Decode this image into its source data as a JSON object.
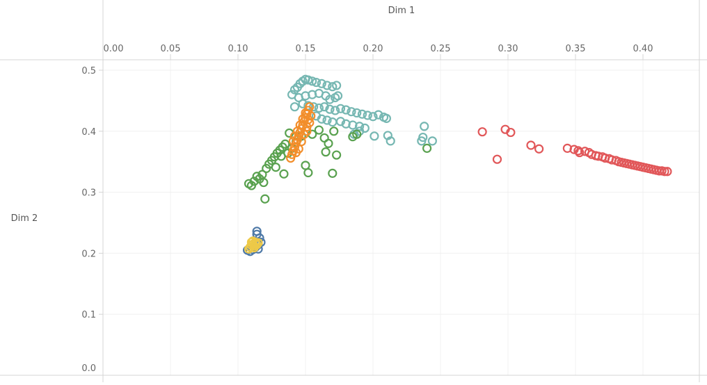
{
  "chart_data": {
    "type": "scatter",
    "marker": "hollow-circle",
    "xlabel": "Dim 1",
    "ylabel": "Dim 2",
    "xlim": [
      0.0,
      0.42
    ],
    "ylim": [
      0.0,
      0.5
    ],
    "x_ticks": [
      "0.00",
      "0.05",
      "0.10",
      "0.15",
      "0.20",
      "0.25",
      "0.30",
      "0.35",
      "0.40"
    ],
    "y_ticks": [
      "0.0",
      "0.1",
      "0.2",
      "0.3",
      "0.4",
      "0.5"
    ],
    "grid": true,
    "series": [
      {
        "color": "#e15759",
        "points": [
          [
            0.281,
            0.399
          ],
          [
            0.292,
            0.354
          ],
          [
            0.298,
            0.403
          ],
          [
            0.302,
            0.398
          ],
          [
            0.317,
            0.377
          ],
          [
            0.323,
            0.371
          ],
          [
            0.344,
            0.372
          ],
          [
            0.349,
            0.37
          ],
          [
            0.352,
            0.368
          ],
          [
            0.353,
            0.365
          ],
          [
            0.357,
            0.367
          ],
          [
            0.36,
            0.365
          ],
          [
            0.362,
            0.362
          ],
          [
            0.365,
            0.36
          ],
          [
            0.367,
            0.359
          ],
          [
            0.37,
            0.358
          ],
          [
            0.372,
            0.356
          ],
          [
            0.375,
            0.355
          ],
          [
            0.377,
            0.353
          ],
          [
            0.38,
            0.352
          ],
          [
            0.382,
            0.35
          ],
          [
            0.384,
            0.349
          ],
          [
            0.386,
            0.348
          ],
          [
            0.388,
            0.347
          ],
          [
            0.39,
            0.346
          ],
          [
            0.392,
            0.345
          ],
          [
            0.394,
            0.344
          ],
          [
            0.396,
            0.343
          ],
          [
            0.398,
            0.342
          ],
          [
            0.4,
            0.341
          ],
          [
            0.402,
            0.34
          ],
          [
            0.404,
            0.339
          ],
          [
            0.406,
            0.338
          ],
          [
            0.408,
            0.337
          ],
          [
            0.41,
            0.336
          ],
          [
            0.412,
            0.335
          ],
          [
            0.414,
            0.335
          ],
          [
            0.416,
            0.334
          ],
          [
            0.418,
            0.334
          ]
        ]
      },
      {
        "color": "#76b7b2",
        "points": [
          [
            0.14,
            0.46
          ],
          [
            0.142,
            0.468
          ],
          [
            0.144,
            0.472
          ],
          [
            0.146,
            0.478
          ],
          [
            0.148,
            0.482
          ],
          [
            0.15,
            0.485
          ],
          [
            0.152,
            0.484
          ],
          [
            0.155,
            0.482
          ],
          [
            0.158,
            0.48
          ],
          [
            0.162,
            0.478
          ],
          [
            0.166,
            0.475
          ],
          [
            0.17,
            0.473
          ],
          [
            0.173,
            0.475
          ],
          [
            0.145,
            0.455
          ],
          [
            0.15,
            0.458
          ],
          [
            0.155,
            0.46
          ],
          [
            0.16,
            0.462
          ],
          [
            0.165,
            0.458
          ],
          [
            0.168,
            0.452
          ],
          [
            0.172,
            0.455
          ],
          [
            0.174,
            0.458
          ],
          [
            0.142,
            0.44
          ],
          [
            0.148,
            0.445
          ],
          [
            0.152,
            0.442
          ],
          [
            0.156,
            0.44
          ],
          [
            0.16,
            0.438
          ],
          [
            0.164,
            0.44
          ],
          [
            0.168,
            0.436
          ],
          [
            0.172,
            0.434
          ],
          [
            0.176,
            0.437
          ],
          [
            0.18,
            0.435
          ],
          [
            0.184,
            0.432
          ],
          [
            0.188,
            0.43
          ],
          [
            0.192,
            0.428
          ],
          [
            0.196,
            0.426
          ],
          [
            0.2,
            0.424
          ],
          [
            0.204,
            0.427
          ],
          [
            0.208,
            0.423
          ],
          [
            0.21,
            0.421
          ],
          [
            0.158,
            0.425
          ],
          [
            0.162,
            0.42
          ],
          [
            0.166,
            0.418
          ],
          [
            0.17,
            0.415
          ],
          [
            0.176,
            0.416
          ],
          [
            0.18,
            0.412
          ],
          [
            0.185,
            0.41
          ],
          [
            0.19,
            0.408
          ],
          [
            0.194,
            0.405
          ],
          [
            0.186,
            0.395
          ],
          [
            0.19,
            0.4
          ],
          [
            0.201,
            0.392
          ],
          [
            0.211,
            0.393
          ],
          [
            0.213,
            0.384
          ],
          [
            0.236,
            0.384
          ],
          [
            0.237,
            0.39
          ],
          [
            0.238,
            0.408
          ],
          [
            0.244,
            0.384
          ]
        ]
      },
      {
        "color": "#59a14f",
        "points": [
          [
            0.108,
            0.314
          ],
          [
            0.11,
            0.311
          ],
          [
            0.112,
            0.318
          ],
          [
            0.114,
            0.326
          ],
          [
            0.116,
            0.322
          ],
          [
            0.118,
            0.329
          ],
          [
            0.119,
            0.316
          ],
          [
            0.12,
            0.289
          ],
          [
            0.121,
            0.339
          ],
          [
            0.123,
            0.346
          ],
          [
            0.125,
            0.352
          ],
          [
            0.127,
            0.358
          ],
          [
            0.129,
            0.364
          ],
          [
            0.131,
            0.369
          ],
          [
            0.133,
            0.374
          ],
          [
            0.135,
            0.379
          ],
          [
            0.132,
            0.359
          ],
          [
            0.128,
            0.341
          ],
          [
            0.134,
            0.33
          ],
          [
            0.137,
            0.364
          ],
          [
            0.138,
            0.397
          ],
          [
            0.14,
            0.372
          ],
          [
            0.143,
            0.382
          ],
          [
            0.147,
            0.392
          ],
          [
            0.15,
            0.344
          ],
          [
            0.152,
            0.332
          ],
          [
            0.155,
            0.395
          ],
          [
            0.16,
            0.402
          ],
          [
            0.164,
            0.389
          ],
          [
            0.165,
            0.366
          ],
          [
            0.167,
            0.38
          ],
          [
            0.17,
            0.331
          ],
          [
            0.171,
            0.4
          ],
          [
            0.173,
            0.361
          ],
          [
            0.185,
            0.391
          ],
          [
            0.188,
            0.395
          ],
          [
            0.24,
            0.372
          ]
        ]
      },
      {
        "color": "#f28e2b",
        "points": [
          [
            0.139,
            0.356
          ],
          [
            0.14,
            0.362
          ],
          [
            0.141,
            0.368
          ],
          [
            0.142,
            0.374
          ],
          [
            0.143,
            0.38
          ],
          [
            0.144,
            0.386
          ],
          [
            0.145,
            0.392
          ],
          [
            0.146,
            0.398
          ],
          [
            0.147,
            0.404
          ],
          [
            0.148,
            0.41
          ],
          [
            0.149,
            0.416
          ],
          [
            0.15,
            0.422
          ],
          [
            0.151,
            0.428
          ],
          [
            0.152,
            0.434
          ],
          [
            0.153,
            0.44
          ],
          [
            0.143,
            0.365
          ],
          [
            0.145,
            0.371
          ],
          [
            0.147,
            0.383
          ],
          [
            0.149,
            0.395
          ],
          [
            0.151,
            0.407
          ],
          [
            0.152,
            0.419
          ],
          [
            0.144,
            0.4
          ],
          [
            0.146,
            0.41
          ],
          [
            0.148,
            0.42
          ],
          [
            0.15,
            0.43
          ],
          [
            0.141,
            0.384
          ],
          [
            0.142,
            0.392
          ],
          [
            0.154,
            0.425
          ],
          [
            0.153,
            0.414
          ],
          [
            0.151,
            0.4
          ]
        ]
      },
      {
        "color": "#4e79a7",
        "points": [
          [
            0.107,
            0.205
          ],
          [
            0.109,
            0.203
          ],
          [
            0.111,
            0.206
          ],
          [
            0.113,
            0.21
          ],
          [
            0.115,
            0.214
          ],
          [
            0.117,
            0.218
          ],
          [
            0.116,
            0.225
          ],
          [
            0.114,
            0.231
          ],
          [
            0.114,
            0.236
          ],
          [
            0.115,
            0.207
          ]
        ]
      },
      {
        "color": "#edc948",
        "points": [
          [
            0.108,
            0.207
          ],
          [
            0.109,
            0.21
          ],
          [
            0.11,
            0.213
          ],
          [
            0.111,
            0.215
          ],
          [
            0.112,
            0.212
          ],
          [
            0.113,
            0.216
          ],
          [
            0.114,
            0.214
          ],
          [
            0.112,
            0.209
          ],
          [
            0.11,
            0.218
          ],
          [
            0.111,
            0.22
          ],
          [
            0.113,
            0.218
          ],
          [
            0.115,
            0.217
          ]
        ]
      }
    ]
  }
}
